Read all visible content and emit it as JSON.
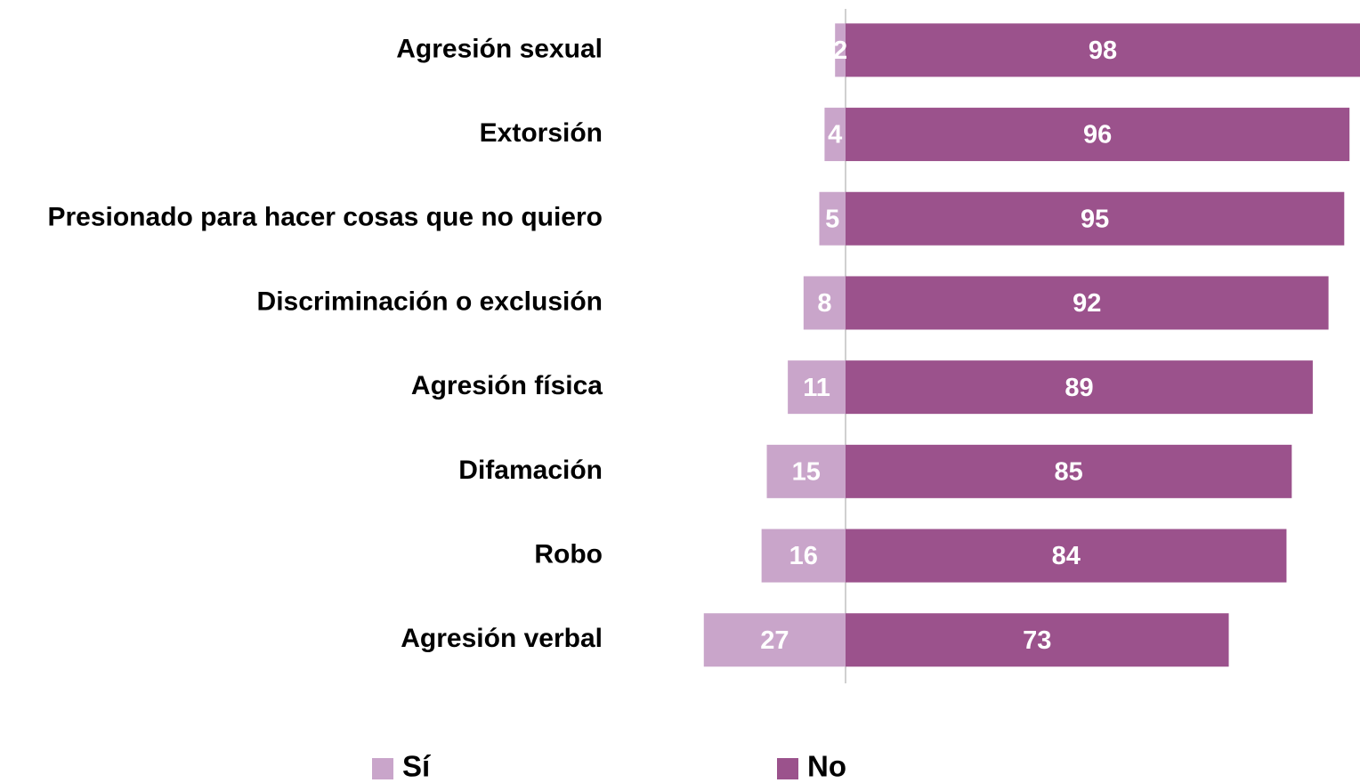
{
  "chart_data": {
    "type": "diverging-bar",
    "categories": [
      "Agresión sexual",
      "Extorsión",
      "Presionado para hacer cosas que no quiero",
      "Discriminación o exclusión",
      "Agresión física",
      "Difamación",
      "Robo",
      "Agresión verbal"
    ],
    "series": [
      {
        "name": "Sí",
        "color": "#c9a5ca",
        "values": [
          2,
          4,
          5,
          8,
          11,
          15,
          16,
          27
        ]
      },
      {
        "name": "No",
        "color": "#9b528c",
        "values": [
          98,
          96,
          95,
          92,
          89,
          85,
          84,
          73
        ]
      }
    ],
    "legend": "bottom"
  }
}
